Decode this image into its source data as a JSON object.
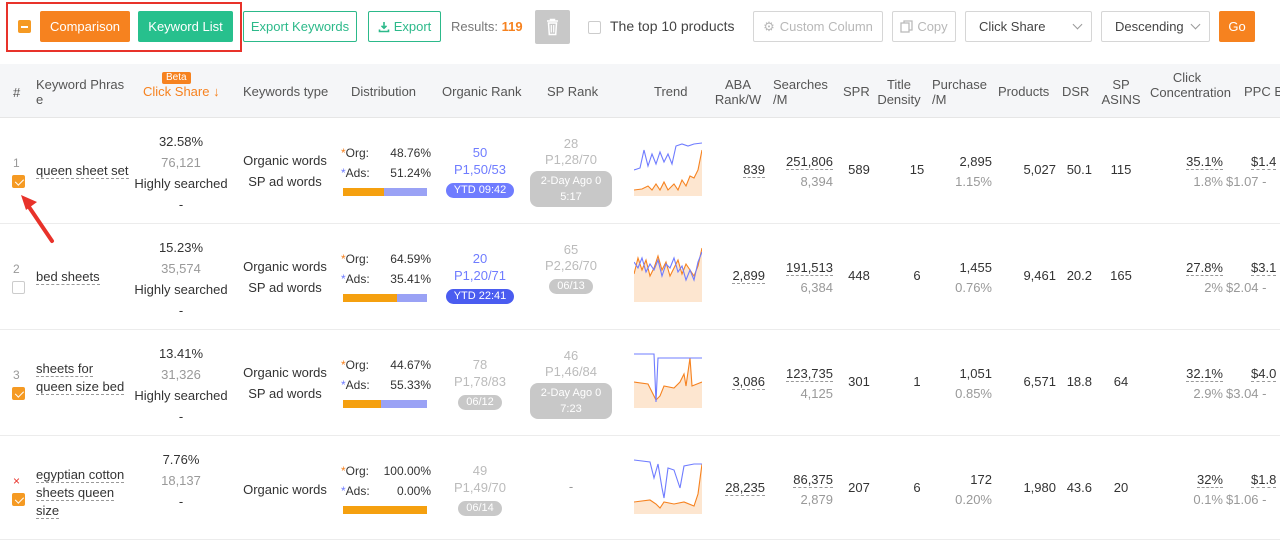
{
  "toolbar": {
    "comparison": "Comparison",
    "keyword_list": "Keyword List",
    "export_keywords": "Export Keywords",
    "export": "Export",
    "results_label": "Results:",
    "results_count": "119",
    "top10": "The top 10 products",
    "custom_column": "Custom Column",
    "copy": "Copy",
    "sort_field": "Click Share",
    "sort_order": "Descending",
    "go": "Go"
  },
  "columns": {
    "index": "#",
    "keyword": "Keyword Phrase",
    "beta": "Beta",
    "click_share": "Click Share",
    "keywords_type": "Keywords type",
    "distribution": "Distribution",
    "organic_rank": "Organic Rank",
    "sp_rank": "SP Rank",
    "trend": "Trend",
    "aba": "ABA Rank/W",
    "searches": "Searches /M",
    "spr": "SPR",
    "title_density": "Title Density",
    "purchase": "Purchase /M",
    "products": "Products",
    "dsr": "DSR",
    "sp_asins": "SP ASINS",
    "click_conc": "Click Concentration",
    "ppc": "PPC B"
  },
  "rows": [
    {
      "index": "1",
      "keyword": "queen sheet set",
      "checked": true,
      "click_share": "32.58%",
      "clicks": "76,121",
      "searched_label": "Highly searched",
      "dash": "-",
      "type1": "Organic words",
      "type2": "SP ad words",
      "org_label": "Org:",
      "org_pct": "48.76%",
      "ads_label": "Ads:",
      "ads_pct": "51.24%",
      "org_fraction": 0.4876,
      "organic_rank": "50",
      "organic_pos": "P1,50/53",
      "organic_badge": "YTD 09:42",
      "organic_badge_color": "#6f7cff",
      "sp_rank": "28",
      "sp_pos": "P1,28/70",
      "sp_badge": "2-Day Ago 0 5:17",
      "aba": "839",
      "searches": "251,806",
      "searches_sub": "8,394",
      "spr": "589",
      "title_density": "15",
      "purchase": "2,895",
      "purchase_pct": "1.15%",
      "products": "5,027",
      "dsr": "50.1",
      "sp_asins": "115",
      "click_conc": "35.1%",
      "click_conc_sub": "1.8%",
      "ppc": "$1.4",
      "ppc_sub": "$1.07 -"
    },
    {
      "index": "2",
      "keyword": "bed sheets",
      "checked": false,
      "click_share": "15.23%",
      "clicks": "35,574",
      "searched_label": "Highly searched",
      "dash": "-",
      "type1": "Organic words",
      "type2": "SP ad words",
      "org_label": "Org:",
      "org_pct": "64.59%",
      "ads_label": "Ads:",
      "ads_pct": "35.41%",
      "org_fraction": 0.6459,
      "organic_rank": "20",
      "organic_pos": "P1,20/71",
      "organic_badge": "YTD 22:41",
      "organic_badge_color": "#4a5cf0",
      "sp_rank": "65",
      "sp_pos": "P2,26/70",
      "sp_badge": "06/13",
      "aba": "2,899",
      "searches": "191,513",
      "searches_sub": "6,384",
      "spr": "448",
      "title_density": "6",
      "purchase": "1,455",
      "purchase_pct": "0.76%",
      "products": "9,461",
      "dsr": "20.2",
      "sp_asins": "165",
      "click_conc": "27.8%",
      "click_conc_sub": "2%",
      "ppc": "$3.1",
      "ppc_sub": "$2.04 -"
    },
    {
      "index": "3",
      "keyword": "sheets for queen size bed",
      "checked": true,
      "click_share": "13.41%",
      "clicks": "31,326",
      "searched_label": "Highly searched",
      "dash": "-",
      "type1": "Organic words",
      "type2": "SP ad words",
      "org_label": "Org:",
      "org_pct": "44.67%",
      "ads_label": "Ads:",
      "ads_pct": "55.33%",
      "org_fraction": 0.4467,
      "organic_rank": "78",
      "organic_pos": "P1,78/83",
      "organic_badge": "06/12",
      "organic_badge_color": "#c8c8c8",
      "sp_rank": "46",
      "sp_pos": "P1,46/84",
      "sp_badge": "2-Day Ago 0 7:23",
      "aba": "3,086",
      "searches": "123,735",
      "searches_sub": "4,125",
      "spr": "301",
      "title_density": "1",
      "purchase": "1,051",
      "purchase_pct": "0.85%",
      "products": "6,571",
      "dsr": "18.8",
      "sp_asins": "64",
      "click_conc": "32.1%",
      "click_conc_sub": "2.9%",
      "ppc": "$4.0",
      "ppc_sub": "$3.04 -"
    },
    {
      "index": "×",
      "keyword": "egyptian cotton sheets queen size",
      "checked": true,
      "click_share": "7.76%",
      "clicks": "18,137",
      "searched_label": "",
      "dash": "-",
      "type1": "Organic words",
      "type2": "",
      "org_label": "Org:",
      "org_pct": "100.00%",
      "ads_label": "Ads:",
      "ads_pct": "0.00%",
      "org_fraction": 1.0,
      "organic_rank": "49",
      "organic_pos": "P1,49/70",
      "organic_badge": "06/14",
      "organic_badge_color": "#c8c8c8",
      "sp_rank": "",
      "sp_pos": "-",
      "sp_badge": "",
      "aba": "28,235",
      "searches": "86,375",
      "searches_sub": "2,879",
      "spr": "207",
      "title_density": "6",
      "purchase": "172",
      "purchase_pct": "0.20%",
      "products": "1,980",
      "dsr": "43.6",
      "sp_asins": "20",
      "click_conc": "32%",
      "click_conc_sub": "0.1%",
      "ppc": "$1.8",
      "ppc_sub": "$1.06 -"
    }
  ],
  "colors": {
    "accent_orange": "#f6821f",
    "accent_green": "#27c08d",
    "ads_blue": "#9aa2f5",
    "highlight_red": "#e8322a"
  }
}
